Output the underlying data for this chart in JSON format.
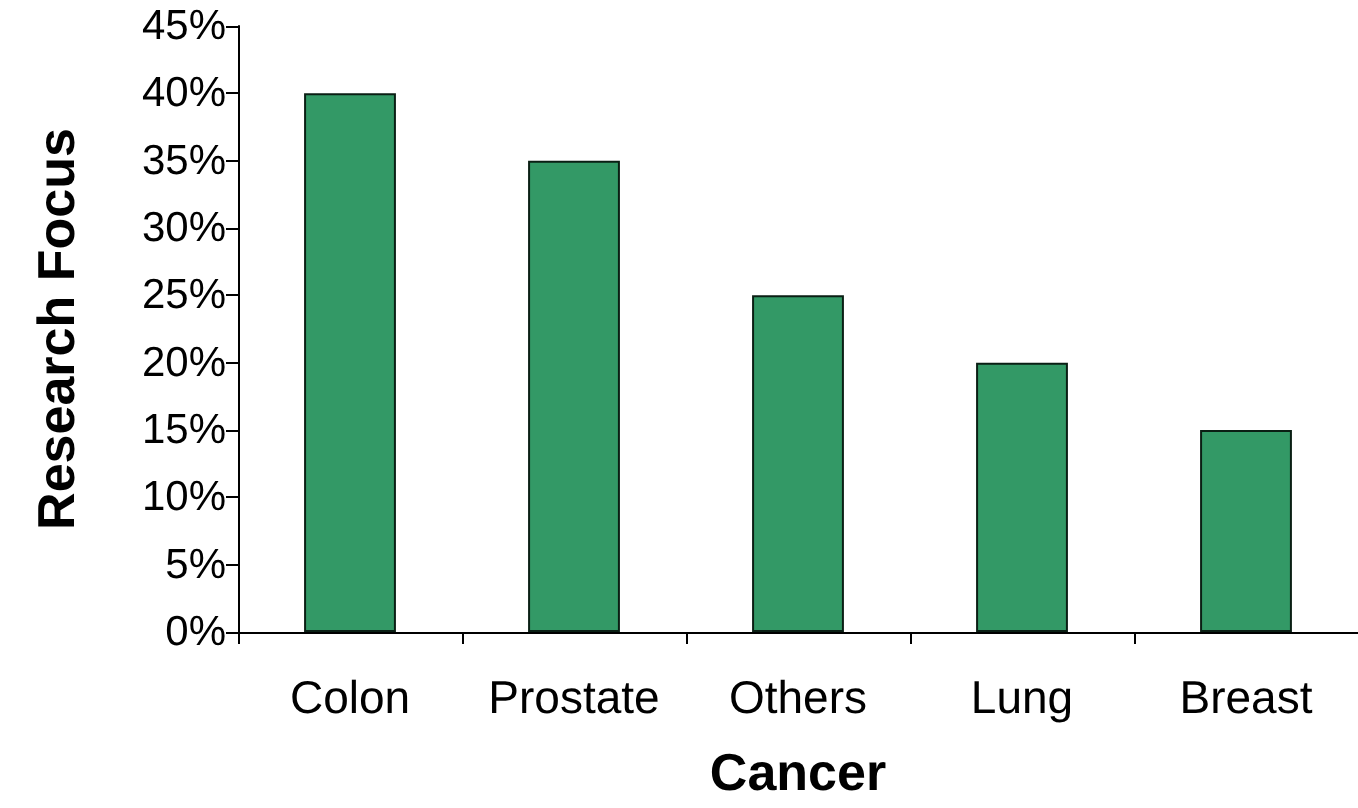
{
  "chart_data": {
    "type": "bar",
    "xlabel": "Cancer",
    "ylabel": "Research Focus",
    "categories": [
      "Colon",
      "Prostate",
      "Others",
      "Lung",
      "Breast"
    ],
    "values": [
      40,
      35,
      25,
      20,
      15
    ],
    "color": "#339966",
    "ylim": [
      0,
      45
    ],
    "yticks": [
      {
        "value": 0,
        "label": "0%"
      },
      {
        "value": 5,
        "label": "5%"
      },
      {
        "value": 10,
        "label": "10%"
      },
      {
        "value": 15,
        "label": "15%"
      },
      {
        "value": 20,
        "label": "20%"
      },
      {
        "value": 25,
        "label": "25%"
      },
      {
        "value": 30,
        "label": "30%"
      },
      {
        "value": 35,
        "label": "35%"
      },
      {
        "value": 40,
        "label": "40%"
      },
      {
        "value": 45,
        "label": "45%"
      }
    ]
  }
}
